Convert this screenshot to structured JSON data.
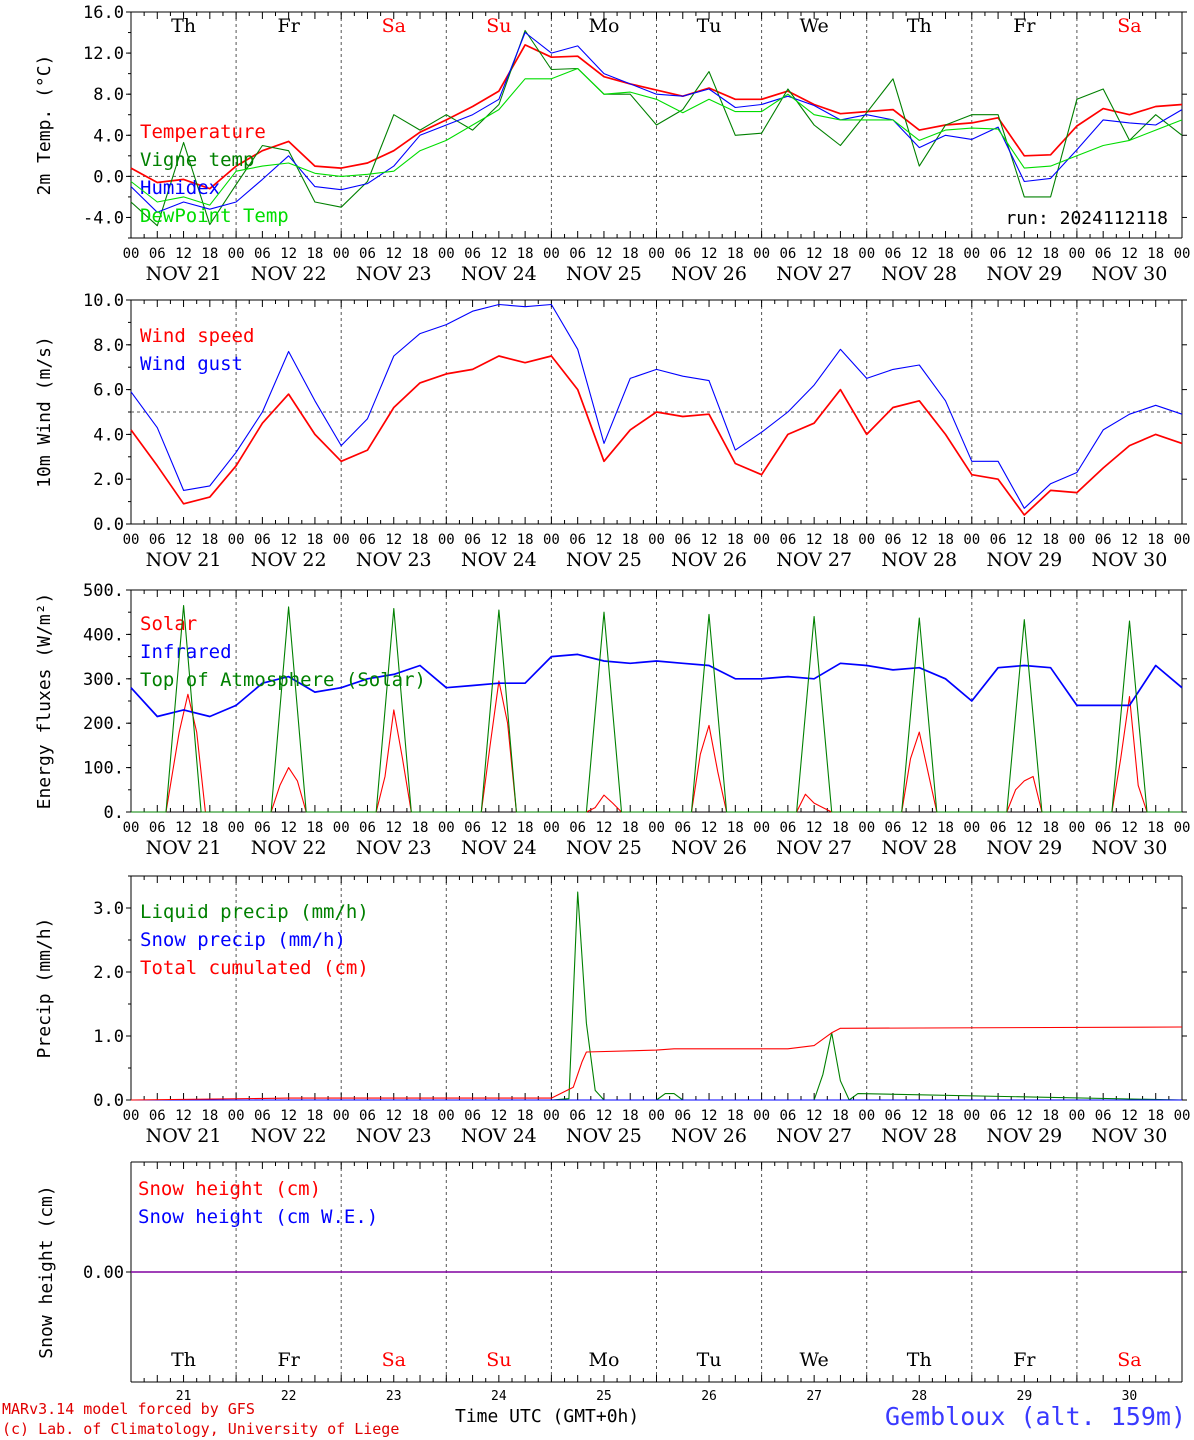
{
  "chart_data": [
    {
      "type": "line",
      "ylabel": "2m Temp. (°C)",
      "ylim": [
        -6,
        16
      ],
      "yticks": [
        "-4.0",
        "0.0",
        "4.0",
        "8.0",
        "12.0",
        "16.0"
      ],
      "ytick_values": [
        -4,
        0,
        4,
        8,
        12,
        16
      ],
      "reference_line": 0,
      "annotation": "run: 2024112118",
      "x_unit": "hours since Nov 21 00 UTC",
      "series": [
        {
          "name": "Temperature",
          "color": "#ff0000",
          "x": [
            0,
            6,
            12,
            18,
            24,
            30,
            36,
            42,
            48,
            54,
            60,
            66,
            72,
            78,
            84,
            90,
            96,
            102,
            108,
            114,
            120,
            126,
            132,
            138,
            144,
            150,
            156,
            162,
            168,
            174,
            180,
            186,
            192,
            198,
            204,
            210,
            216,
            222,
            228,
            234,
            240
          ],
          "y": [
            0.8,
            -0.6,
            -0.3,
            -1.2,
            1.0,
            2.5,
            3.4,
            1.0,
            0.8,
            1.3,
            2.5,
            4.3,
            5.5,
            6.8,
            8.3,
            12.8,
            11.6,
            11.7,
            9.7,
            9.0,
            8.4,
            7.8,
            8.6,
            7.5,
            7.5,
            8.3,
            7.0,
            6.1,
            6.3,
            6.5,
            4.5,
            5.0,
            5.2,
            5.7,
            2.0,
            2.1,
            4.9,
            6.6,
            6.0,
            6.8,
            7.0
          ]
        },
        {
          "name": "Vigne temp",
          "color": "#008000",
          "x": [
            0,
            6,
            12,
            18,
            24,
            30,
            36,
            42,
            48,
            54,
            60,
            66,
            72,
            78,
            84,
            90,
            96,
            102,
            108,
            114,
            120,
            126,
            132,
            138,
            144,
            150,
            156,
            162,
            168,
            174,
            180,
            186,
            192,
            198,
            204,
            210,
            216,
            222,
            228,
            234,
            240
          ],
          "y": [
            -2.5,
            -4.8,
            3.3,
            -4.7,
            -0.8,
            3.0,
            2.5,
            -2.5,
            -3.0,
            -0.5,
            6.0,
            4.5,
            6.0,
            4.5,
            7.0,
            14.2,
            10.4,
            10.5,
            8.0,
            8.0,
            5.0,
            6.5,
            10.2,
            4.0,
            4.2,
            8.5,
            5.0,
            3.0,
            6.2,
            9.5,
            1.0,
            5.0,
            6.0,
            6.0,
            -2.0,
            -2.0,
            7.5,
            8.5,
            3.5,
            6.0,
            4.0
          ]
        },
        {
          "name": "Humidex",
          "color": "#0000ff",
          "x": [
            0,
            6,
            12,
            18,
            24,
            30,
            36,
            42,
            48,
            54,
            60,
            66,
            72,
            78,
            84,
            90,
            96,
            102,
            108,
            114,
            120,
            126,
            132,
            138,
            144,
            150,
            156,
            162,
            168,
            174,
            180,
            186,
            192,
            198,
            204,
            210,
            216,
            222,
            228,
            234,
            240
          ],
          "y": [
            -1.0,
            -3.5,
            -2.5,
            -3.2,
            -2.5,
            -0.3,
            2.0,
            -1.0,
            -1.3,
            -0.7,
            1.0,
            4.0,
            5.0,
            6.0,
            7.5,
            14.0,
            12.0,
            12.7,
            10.0,
            9.0,
            8.0,
            7.8,
            8.5,
            6.7,
            7.0,
            7.8,
            6.9,
            5.5,
            6.0,
            5.5,
            2.8,
            4.0,
            3.6,
            4.8,
            -0.5,
            -0.2,
            2.6,
            5.5,
            5.2,
            5.0,
            6.5
          ]
        },
        {
          "name": "DewPoint Temp",
          "color": "#00dd00",
          "x": [
            0,
            6,
            12,
            18,
            24,
            30,
            36,
            42,
            48,
            54,
            60,
            66,
            72,
            78,
            84,
            90,
            96,
            102,
            108,
            114,
            120,
            126,
            132,
            138,
            144,
            150,
            156,
            162,
            168,
            174,
            180,
            186,
            192,
            198,
            204,
            210,
            216,
            222,
            228,
            234,
            240
          ],
          "y": [
            -0.5,
            -2.5,
            -2.0,
            -2.8,
            0.5,
            1.0,
            1.3,
            0.3,
            0.0,
            0.2,
            0.5,
            2.5,
            3.5,
            5.0,
            6.5,
            9.5,
            9.5,
            10.5,
            8.0,
            8.2,
            7.5,
            6.2,
            7.5,
            6.3,
            6.3,
            8.0,
            6.0,
            5.5,
            5.5,
            5.5,
            3.5,
            4.5,
            4.7,
            4.6,
            0.8,
            1.0,
            2.0,
            3.0,
            3.5,
            4.5,
            5.5
          ]
        }
      ]
    },
    {
      "type": "line",
      "ylabel": "10m Wind (m/s)",
      "ylim": [
        0,
        10
      ],
      "yticks": [
        "0.0",
        "2.0",
        "4.0",
        "6.0",
        "8.0",
        "10.0"
      ],
      "ytick_values": [
        0,
        2,
        4,
        6,
        8,
        10
      ],
      "reference_line": 5,
      "x_unit": "hours since Nov 21 00 UTC",
      "series": [
        {
          "name": "Wind speed",
          "color": "#ff0000",
          "x": [
            0,
            6,
            12,
            18,
            24,
            30,
            36,
            42,
            48,
            54,
            60,
            66,
            72,
            78,
            84,
            90,
            96,
            102,
            108,
            114,
            120,
            126,
            132,
            138,
            144,
            150,
            156,
            162,
            168,
            174,
            180,
            186,
            192,
            198,
            204,
            210,
            216,
            222,
            228,
            234,
            240
          ],
          "y": [
            4.2,
            2.6,
            0.9,
            1.2,
            2.6,
            4.5,
            5.8,
            4.0,
            2.8,
            3.3,
            5.2,
            6.3,
            6.7,
            6.9,
            7.5,
            7.2,
            7.5,
            6.0,
            2.8,
            4.2,
            5.0,
            4.8,
            4.9,
            2.7,
            2.2,
            4.0,
            4.5,
            6.0,
            4.0,
            5.2,
            5.5,
            4.0,
            2.2,
            2.0,
            0.4,
            1.5,
            1.4,
            2.5,
            3.5,
            4.0,
            3.6
          ]
        },
        {
          "name": "Wind gust",
          "color": "#0000ff",
          "x": [
            0,
            6,
            12,
            18,
            24,
            30,
            36,
            42,
            48,
            54,
            60,
            66,
            72,
            78,
            84,
            90,
            96,
            102,
            108,
            114,
            120,
            126,
            132,
            138,
            144,
            150,
            156,
            162,
            168,
            174,
            180,
            186,
            192,
            198,
            204,
            210,
            216,
            222,
            228,
            234,
            240
          ],
          "y": [
            5.9,
            4.3,
            1.5,
            1.7,
            3.2,
            5.0,
            7.7,
            5.5,
            3.5,
            4.7,
            7.5,
            8.5,
            8.9,
            9.5,
            9.8,
            9.7,
            9.8,
            7.8,
            3.6,
            6.5,
            6.9,
            6.6,
            6.4,
            3.3,
            4.1,
            5.0,
            6.2,
            7.8,
            6.5,
            6.9,
            7.1,
            5.5,
            2.8,
            2.8,
            0.7,
            1.8,
            2.3,
            4.2,
            4.9,
            5.3,
            4.9
          ]
        }
      ]
    },
    {
      "type": "line",
      "ylabel": "Energy fluxes (W/m²)",
      "ylim": [
        0,
        500
      ],
      "yticks": [
        "0.",
        "100.",
        "200.",
        "300.",
        "400.",
        "500."
      ],
      "ytick_values": [
        0,
        100,
        200,
        300,
        400,
        500
      ],
      "x_unit": "hours since Nov 21 00 UTC",
      "series": [
        {
          "name": "Solar",
          "color": "#ff0000",
          "x": [
            0,
            8,
            11,
            13,
            15,
            17,
            32,
            34,
            36,
            38,
            40,
            56,
            58,
            60,
            62,
            64,
            80,
            82,
            84,
            86,
            88,
            104,
            106,
            108,
            110,
            112,
            128,
            130,
            132,
            134,
            136,
            152,
            154,
            156,
            158,
            160,
            176,
            178,
            180,
            182,
            184,
            200,
            202,
            204,
            206,
            208,
            224,
            226,
            228,
            230,
            232,
            240
          ],
          "y": [
            0,
            0,
            180,
            265,
            180,
            0,
            0,
            60,
            100,
            70,
            0,
            0,
            80,
            230,
            120,
            0,
            0,
            150,
            295,
            200,
            0,
            0,
            10,
            38,
            20,
            0,
            0,
            130,
            195,
            90,
            0,
            0,
            40,
            20,
            10,
            0,
            0,
            120,
            180,
            90,
            0,
            0,
            50,
            70,
            80,
            0,
            0,
            120,
            260,
            60,
            0,
            0
          ]
        },
        {
          "name": "Infrared",
          "color": "#0000ff",
          "x": [
            0,
            6,
            12,
            18,
            24,
            30,
            36,
            42,
            48,
            54,
            60,
            66,
            72,
            78,
            84,
            90,
            96,
            102,
            108,
            114,
            120,
            126,
            132,
            138,
            144,
            150,
            156,
            162,
            168,
            174,
            180,
            186,
            192,
            198,
            204,
            210,
            216,
            222,
            228,
            234,
            240
          ],
          "y": [
            280,
            215,
            230,
            215,
            240,
            290,
            305,
            270,
            280,
            300,
            310,
            330,
            280,
            285,
            290,
            290,
            350,
            355,
            340,
            335,
            340,
            335,
            330,
            300,
            300,
            305,
            300,
            335,
            330,
            320,
            325,
            300,
            250,
            325,
            330,
            325,
            240,
            240,
            240,
            330,
            280
          ]
        },
        {
          "name": "Top of Atmosphere (Solar)",
          "color": "#008000",
          "x": [
            0,
            8,
            12,
            16,
            24,
            32,
            36,
            40,
            48,
            56,
            60,
            64,
            72,
            80,
            84,
            88,
            96,
            104,
            108,
            112,
            120,
            128,
            132,
            136,
            144,
            152,
            156,
            160,
            168,
            176,
            180,
            184,
            192,
            200,
            204,
            208,
            216,
            224,
            228,
            232,
            240
          ],
          "y": [
            0,
            0,
            465,
            0,
            0,
            0,
            462,
            0,
            0,
            0,
            458,
            0,
            0,
            0,
            455,
            0,
            0,
            0,
            450,
            0,
            0,
            0,
            445,
            0,
            0,
            0,
            440,
            0,
            0,
            0,
            437,
            0,
            0,
            0,
            433,
            0,
            0,
            0,
            430,
            0,
            0
          ]
        }
      ]
    },
    {
      "type": "line",
      "ylabel": "Precip (mm/h)",
      "ylim": [
        0,
        3.5
      ],
      "yticks": [
        "0.0",
        "1.0",
        "2.0",
        "3.0"
      ],
      "ytick_values": [
        0,
        1,
        2,
        3
      ],
      "x_unit": "hours since Nov 21 00 UTC",
      "series": [
        {
          "name": "Liquid precip (mm/h)",
          "color": "#008000",
          "x": [
            0,
            96,
            100,
            102,
            104,
            106,
            108,
            120,
            122,
            124,
            126,
            156,
            158,
            160,
            162,
            164,
            166,
            240
          ],
          "y": [
            0,
            0,
            0.02,
            3.25,
            1.2,
            0.15,
            0,
            0,
            0.1,
            0.1,
            0,
            0,
            0.4,
            1.05,
            0.3,
            0,
            0.1,
            0
          ]
        },
        {
          "name": "Snow precip (mm/h)",
          "color": "#0000ff",
          "x": [
            0,
            240
          ],
          "y": [
            0,
            0
          ]
        },
        {
          "name": "Total cumulated (cm)",
          "color": "#ff0000",
          "x": [
            0,
            36,
            96,
            101,
            103,
            104,
            120,
            124,
            150,
            156,
            160,
            162,
            240
          ],
          "y": [
            0,
            0.03,
            0.03,
            0.2,
            0.6,
            0.75,
            0.78,
            0.8,
            0.8,
            0.85,
            1.05,
            1.12,
            1.14
          ]
        }
      ]
    },
    {
      "type": "line",
      "ylabel": "Snow height (cm)",
      "ylim": [
        -1,
        1
      ],
      "yticks": [
        "0.00"
      ],
      "ytick_values": [
        0
      ],
      "x_unit": "hours since Nov 21 00 UTC",
      "series": [
        {
          "name": "Snow height (cm)",
          "color": "#ff0000",
          "x": [
            0,
            240
          ],
          "y": [
            0,
            0
          ]
        },
        {
          "name": "Snow height (cm W.E.)",
          "color": "#0000ff",
          "x": [
            0,
            240
          ],
          "y": [
            0,
            0
          ]
        }
      ]
    }
  ],
  "axis": {
    "hour_ticks": [
      "00",
      "06",
      "12",
      "18"
    ],
    "last_tick": "00",
    "dates": [
      "NOV 21",
      "NOV 22",
      "NOV 23",
      "NOV 24",
      "NOV 25",
      "NOV 26",
      "NOV 27",
      "NOV 28",
      "NOV 29",
      "NOV 30"
    ],
    "days": [
      "Th",
      "Fr",
      "Sa",
      "Su",
      "Mo",
      "Tu",
      "We",
      "Th",
      "Fr",
      "Sa"
    ],
    "day_colors": [
      "#000000",
      "#000000",
      "#ff0000",
      "#ff0000",
      "#000000",
      "#000000",
      "#000000",
      "#000000",
      "#000000",
      "#ff0000"
    ],
    "day_numbers": [
      "21",
      "22",
      "23",
      "24",
      "25",
      "26",
      "27",
      "28",
      "29",
      "30"
    ]
  },
  "footer": {
    "model_line": "MARv3.14 model forced by GFS",
    "copyright_line": "(c) Lab. of Climatology, University of Liege",
    "time_label": "Time UTC (GMT+0h)",
    "station": "Gembloux (alt. 159m)"
  }
}
